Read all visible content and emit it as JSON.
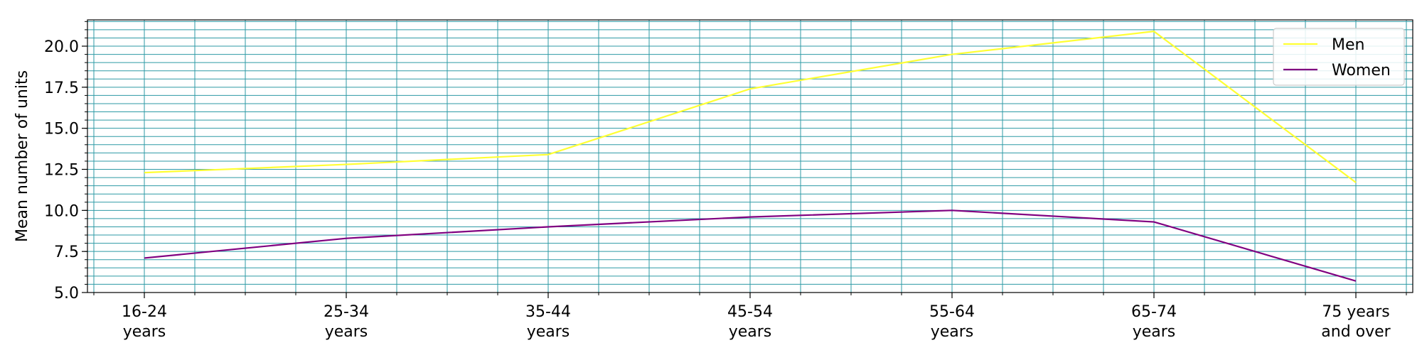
{
  "chart_data": {
    "type": "line",
    "categories": [
      [
        "16-24",
        "years"
      ],
      [
        "25-34",
        "years"
      ],
      [
        "35-44",
        "years"
      ],
      [
        "45-54",
        "years"
      ],
      [
        "55-64",
        "years"
      ],
      [
        "65-74",
        "years"
      ],
      [
        "75 years",
        "and over"
      ]
    ],
    "series": [
      {
        "name": "Men",
        "values": [
          12.3,
          12.8,
          13.4,
          17.4,
          19.5,
          20.9,
          11.7
        ],
        "color": "#ffff33"
      },
      {
        "name": "Women",
        "values": [
          7.1,
          8.3,
          9.0,
          9.6,
          10.0,
          9.3,
          5.7
        ],
        "color": "#800080"
      }
    ],
    "xlabel": "",
    "ylabel": "Mean number of units",
    "ylim": [
      5.0,
      21.6
    ],
    "yticks": [
      "5.0",
      "7.5",
      "10.0",
      "12.5",
      "15.0",
      "17.5",
      "20.0"
    ],
    "grid": true,
    "grid_color": "#2e9aa5",
    "legend_position": "top-right"
  }
}
